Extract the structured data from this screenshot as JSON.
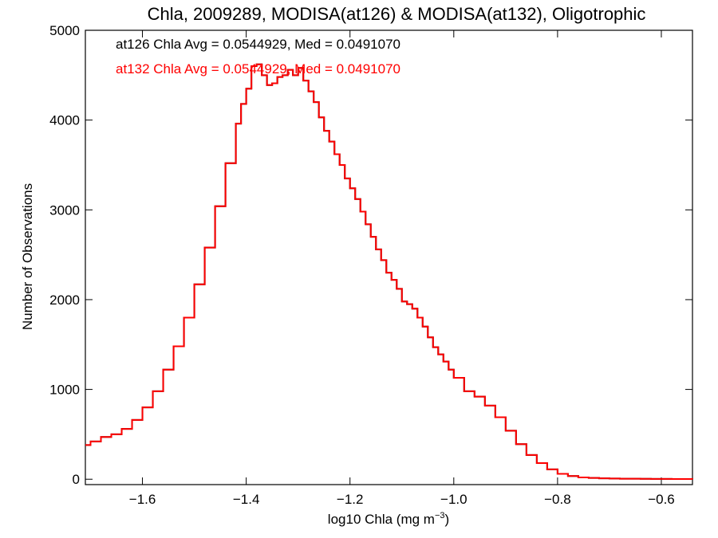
{
  "chart_data": {
    "type": "line",
    "title": "Chla, 2009289, MODISA(at126) & MODISA(at132), Oligotrophic",
    "xlabel_main": "log10 Chla (mg m",
    "xlabel_exp": "−3",
    "xlabel_close": ")",
    "ylabel": "Number of Observations",
    "xlim": [
      -1.71,
      -0.54
    ],
    "ylim": [
      -60,
      5000
    ],
    "x_ticks": [
      -1.6,
      -1.4,
      -1.2,
      -1.0,
      -0.8,
      -0.6
    ],
    "x_tick_labels": [
      "−1.6",
      "−1.4",
      "−1.2",
      "−1.0",
      "−0.8",
      "−0.6"
    ],
    "y_ticks": [
      0,
      1000,
      2000,
      3000,
      4000,
      5000
    ],
    "y_tick_labels": [
      "0",
      "1000",
      "2000",
      "3000",
      "4000",
      "5000"
    ],
    "annotations": [
      {
        "text": "at126 Chla Avg = 0.0544929, Med = 0.0491070",
        "color": "#000000"
      },
      {
        "text": "at132 Chla Avg = 0.0544929, Med = 0.0491070",
        "color": "#ff0000"
      }
    ],
    "series": [
      {
        "color": "#000000",
        "x": [
          -1.71,
          -1.7,
          -1.68,
          -1.66,
          -1.64,
          -1.62,
          -1.6,
          -1.58,
          -1.56,
          -1.54,
          -1.52,
          -1.5,
          -1.48,
          -1.46,
          -1.44,
          -1.42,
          -1.41,
          -1.4,
          -1.39,
          -1.38,
          -1.37,
          -1.36,
          -1.35,
          -1.34,
          -1.33,
          -1.32,
          -1.31,
          -1.3,
          -1.29,
          -1.28,
          -1.27,
          -1.26,
          -1.25,
          -1.24,
          -1.23,
          -1.22,
          -1.21,
          -1.2,
          -1.19,
          -1.18,
          -1.17,
          -1.16,
          -1.15,
          -1.14,
          -1.13,
          -1.12,
          -1.11,
          -1.1,
          -1.09,
          -1.08,
          -1.07,
          -1.06,
          -1.05,
          -1.04,
          -1.03,
          -1.02,
          -1.01,
          -1.0,
          -0.98,
          -0.96,
          -0.94,
          -0.92,
          -0.9,
          -0.88,
          -0.86,
          -0.84,
          -0.82,
          -0.8,
          -0.78,
          -0.76,
          -0.74,
          -0.72,
          -0.7,
          -0.68,
          -0.66,
          -0.64,
          -0.62,
          -0.6,
          -0.58,
          -0.56,
          -0.54
        ],
        "y": [
          380,
          420,
          470,
          500,
          560,
          660,
          800,
          980,
          1220,
          1480,
          1800,
          2170,
          2580,
          3040,
          3520,
          3960,
          4180,
          4350,
          4600,
          4620,
          4500,
          4390,
          4410,
          4480,
          4500,
          4560,
          4500,
          4580,
          4440,
          4320,
          4200,
          4030,
          3880,
          3760,
          3620,
          3500,
          3350,
          3240,
          3120,
          2980,
          2840,
          2700,
          2560,
          2440,
          2300,
          2220,
          2120,
          1980,
          1950,
          1900,
          1800,
          1700,
          1580,
          1470,
          1390,
          1310,
          1220,
          1130,
          980,
          920,
          820,
          690,
          540,
          390,
          270,
          180,
          110,
          60,
          35,
          20,
          14,
          10,
          8,
          6,
          5,
          4,
          3,
          3,
          2,
          2,
          1
        ]
      },
      {
        "color": "#ff0000",
        "x": [
          -1.71,
          -1.7,
          -1.68,
          -1.66,
          -1.64,
          -1.62,
          -1.6,
          -1.58,
          -1.56,
          -1.54,
          -1.52,
          -1.5,
          -1.48,
          -1.46,
          -1.44,
          -1.42,
          -1.41,
          -1.4,
          -1.39,
          -1.38,
          -1.37,
          -1.36,
          -1.35,
          -1.34,
          -1.33,
          -1.32,
          -1.31,
          -1.3,
          -1.29,
          -1.28,
          -1.27,
          -1.26,
          -1.25,
          -1.24,
          -1.23,
          -1.22,
          -1.21,
          -1.2,
          -1.19,
          -1.18,
          -1.17,
          -1.16,
          -1.15,
          -1.14,
          -1.13,
          -1.12,
          -1.11,
          -1.1,
          -1.09,
          -1.08,
          -1.07,
          -1.06,
          -1.05,
          -1.04,
          -1.03,
          -1.02,
          -1.01,
          -1.0,
          -0.98,
          -0.96,
          -0.94,
          -0.92,
          -0.9,
          -0.88,
          -0.86,
          -0.84,
          -0.82,
          -0.8,
          -0.78,
          -0.76,
          -0.74,
          -0.72,
          -0.7,
          -0.68,
          -0.66,
          -0.64,
          -0.62,
          -0.6,
          -0.58,
          -0.56,
          -0.54
        ],
        "y": [
          380,
          420,
          470,
          500,
          560,
          660,
          800,
          980,
          1220,
          1480,
          1800,
          2170,
          2580,
          3040,
          3520,
          3960,
          4180,
          4350,
          4600,
          4620,
          4500,
          4390,
          4410,
          4480,
          4500,
          4560,
          4500,
          4580,
          4440,
          4320,
          4200,
          4030,
          3880,
          3760,
          3620,
          3500,
          3350,
          3240,
          3120,
          2980,
          2840,
          2700,
          2560,
          2440,
          2300,
          2220,
          2120,
          1980,
          1950,
          1900,
          1800,
          1700,
          1580,
          1470,
          1390,
          1310,
          1220,
          1130,
          980,
          920,
          820,
          690,
          540,
          390,
          270,
          180,
          110,
          60,
          35,
          20,
          14,
          10,
          8,
          6,
          5,
          4,
          3,
          3,
          2,
          2,
          1
        ]
      }
    ]
  }
}
